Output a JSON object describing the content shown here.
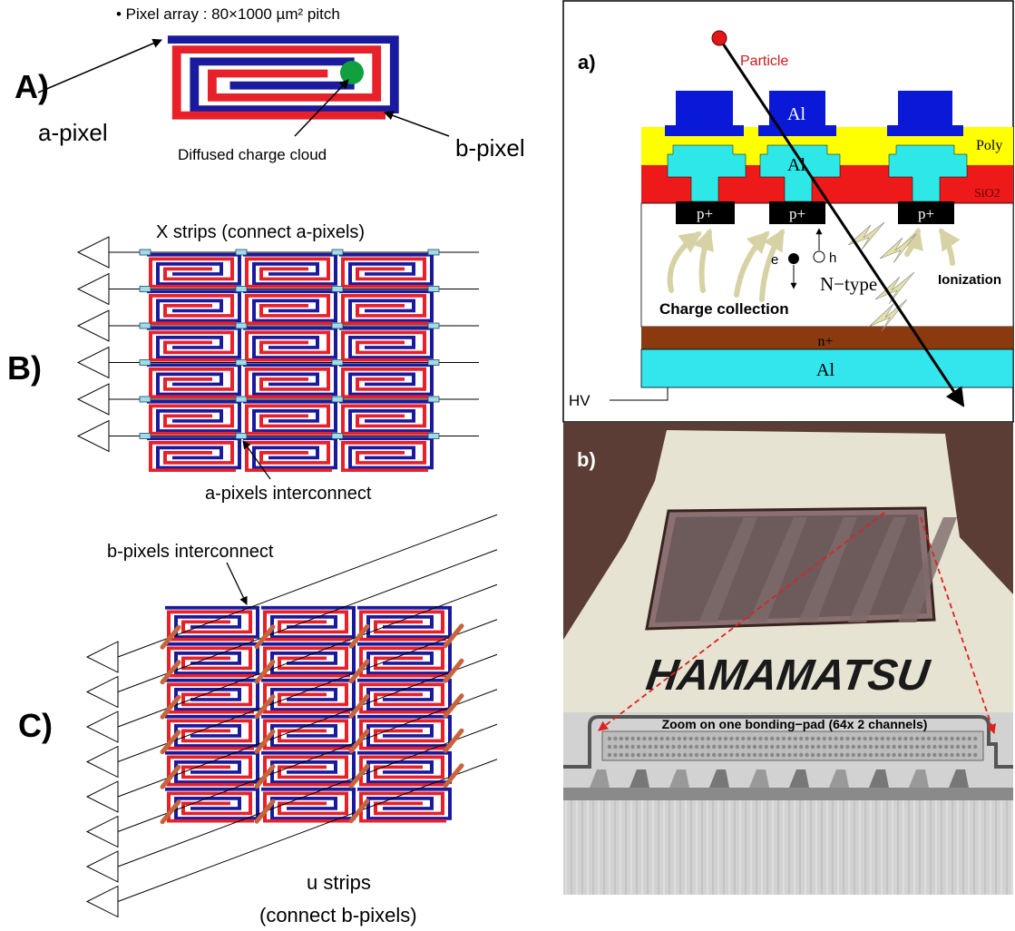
{
  "panel_A": {
    "label": "A)",
    "title": "• Pixel array : 80×1000 µm² pitch",
    "a_pixel": "a-pixel",
    "cloud": "Diffused charge cloud",
    "b_pixel": "b-pixel"
  },
  "panel_B": {
    "label": "B)",
    "title": "X strips (connect a-pixels)",
    "interconnect": "a-pixels interconnect"
  },
  "panel_C": {
    "label": "C)",
    "interconnect": "b-pixels interconnect",
    "strips": "u strips",
    "strips_note": "(connect b-pixels)"
  },
  "panel_a": {
    "label": "a)",
    "particle": "Particle",
    "top_metal": "Al",
    "poly": "Poly",
    "contact": "Al",
    "oxide": "SiO2",
    "implants": [
      "p+",
      "p+",
      "p+"
    ],
    "electron": "e",
    "hole": "h",
    "bulk": "N−type",
    "ionization": "Ionization",
    "collection": "Charge collection",
    "backside": "n+",
    "back_metal": "Al",
    "hv": "HV"
  },
  "panel_b": {
    "label": "b)",
    "brand": "HAMAMATSU",
    "zoom": "Zoom on one bonding−pad (64x 2 channels)"
  }
}
